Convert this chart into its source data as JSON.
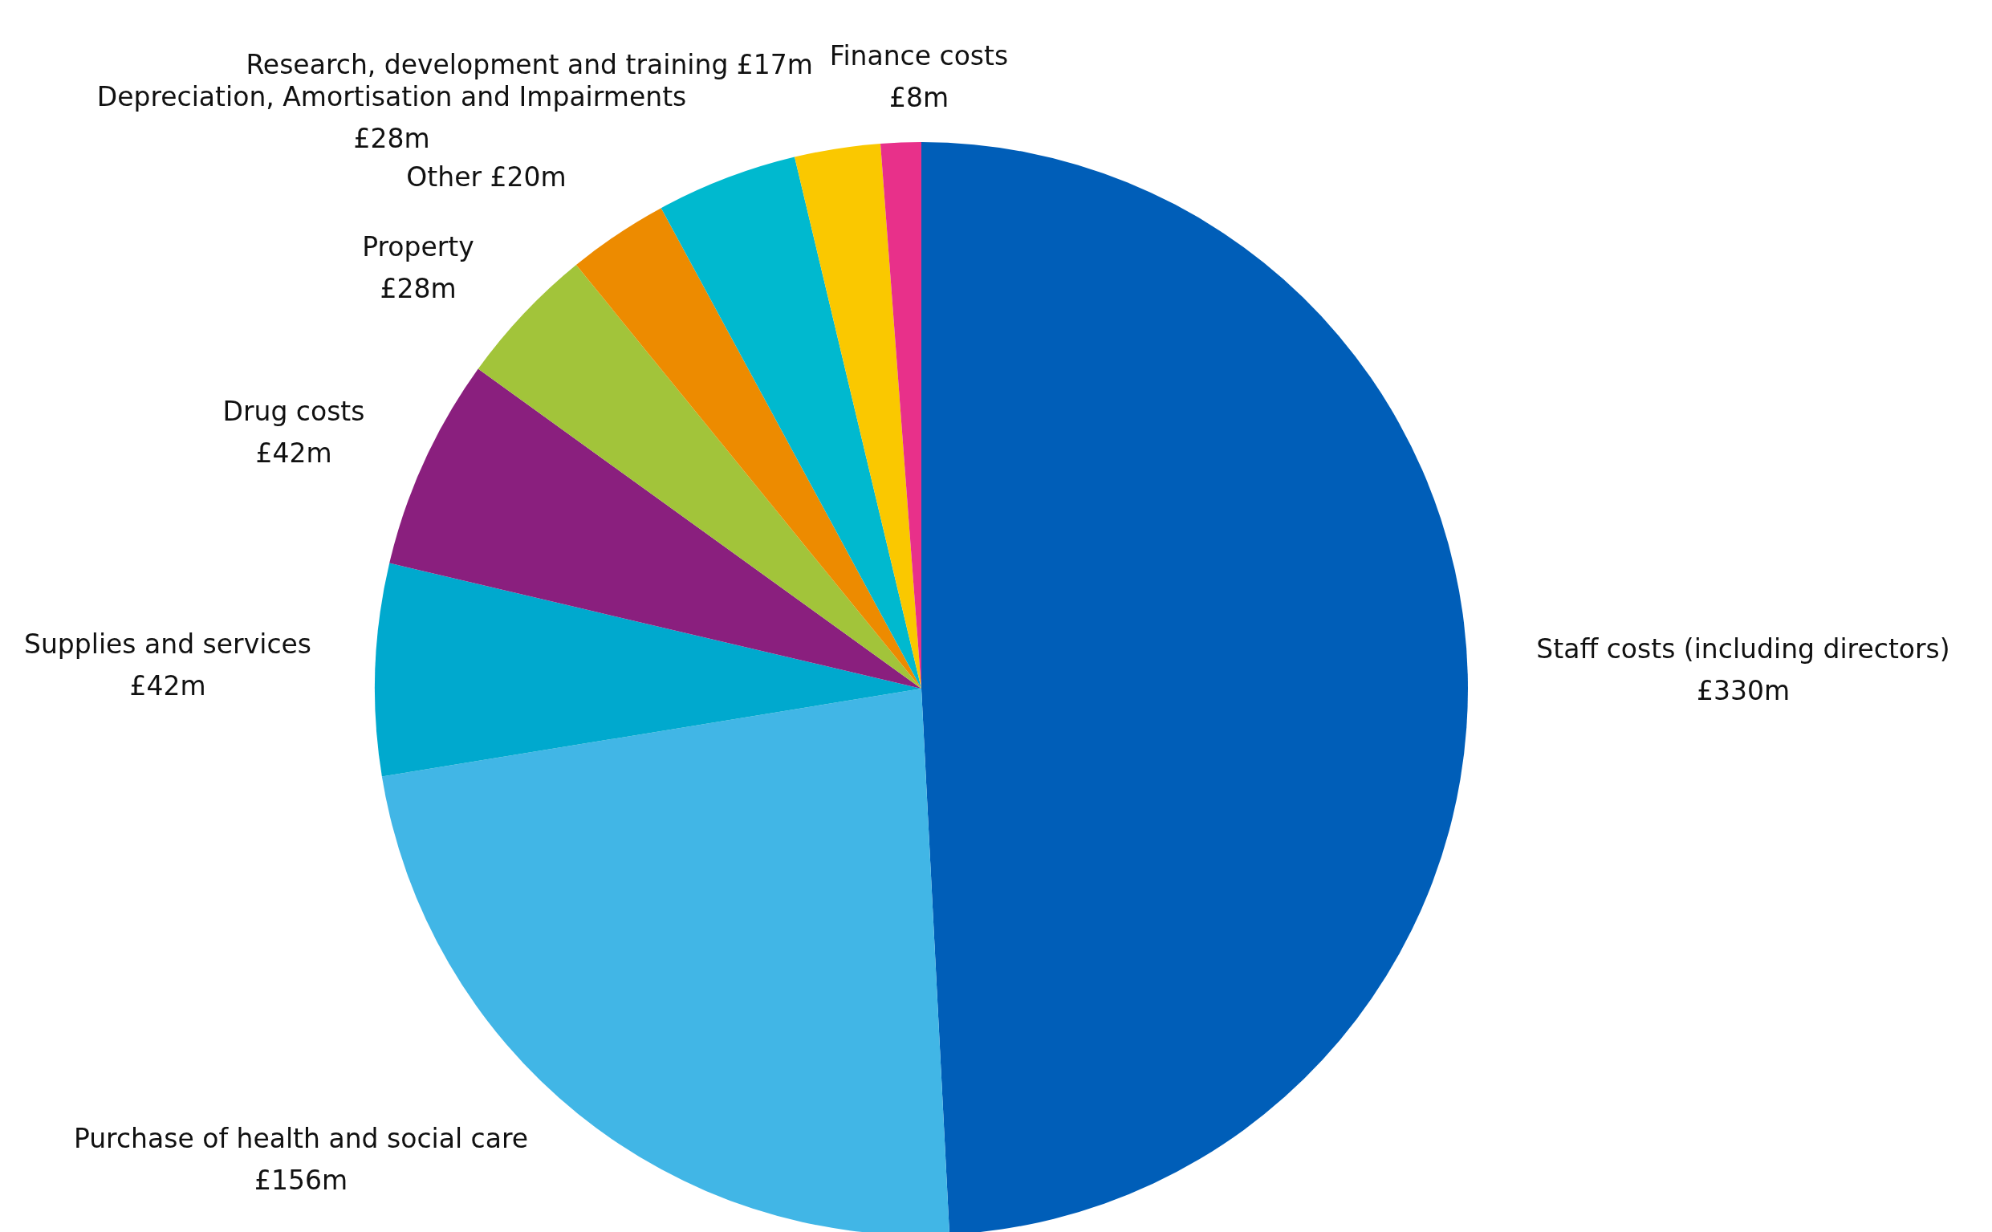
{
  "chart_data": {
    "type": "pie",
    "categories": [
      "Staff costs (including directors)",
      "Purchase of health and social care",
      "Supplies and services",
      "Drug costs",
      "Property",
      "Other",
      "Depreciation, Amortisation and Impairments",
      "Research, development and training",
      "Finance costs"
    ],
    "values": [
      330,
      156,
      42,
      42,
      28,
      20,
      28,
      17,
      8
    ],
    "value_labels": [
      "£330m",
      "£156m",
      "£42m",
      "£42m",
      "£28m",
      "£20m",
      "£28m",
      "£17m",
      "£8m"
    ],
    "colors": [
      "#005eb8",
      "#41b6e6",
      "#00a9ce",
      "#8a1f7e",
      "#a2c43a",
      "#ed8b00",
      "#00b9cf",
      "#fac800",
      "#e8308a"
    ]
  }
}
